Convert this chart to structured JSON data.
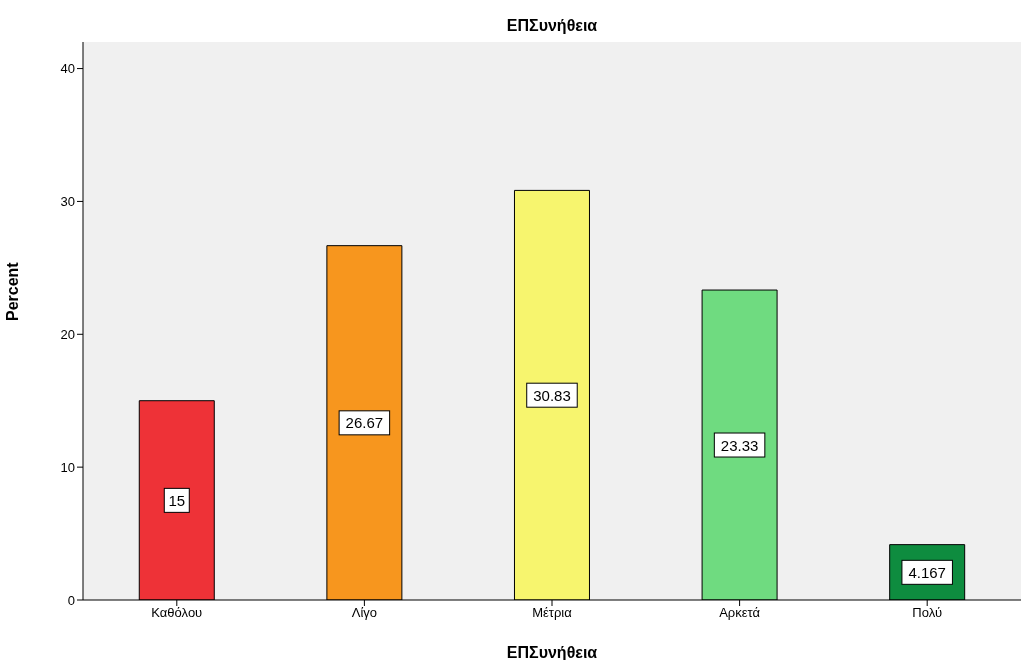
{
  "chart_data": {
    "type": "bar",
    "title": "ΕΠΣυνήθεια",
    "xlabel": "ΕΠΣυνήθεια",
    "ylabel": "Percent",
    "categories": [
      "Καθόλου",
      "Λίγο",
      "Μέτρια",
      "Αρκετά",
      "Πολύ"
    ],
    "values": [
      15,
      26.67,
      30.83,
      23.33,
      4.167
    ],
    "colors": [
      "#ee3237",
      "#f7961e",
      "#f7f56e",
      "#6fdb80",
      "#0e8c3f"
    ],
    "ylim": [
      0,
      42
    ],
    "yticks": [
      0,
      10,
      20,
      30,
      40
    ],
    "data_labels": true
  }
}
